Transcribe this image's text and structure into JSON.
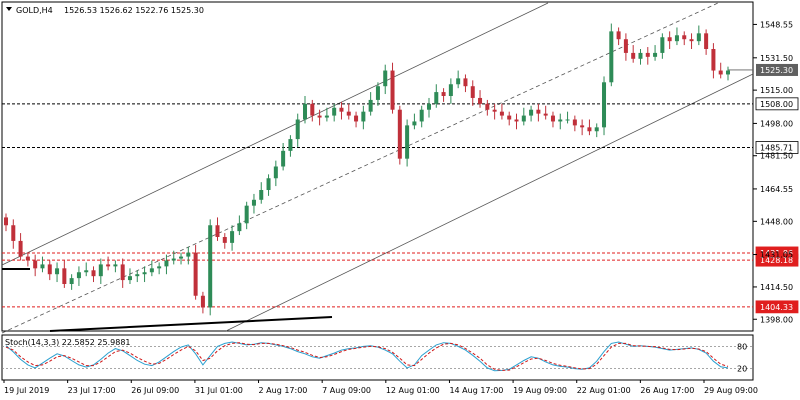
{
  "header": {
    "symbol_timeframe": "GOLD,H4",
    "ohlc": "1526.53 1526.62 1522.76 1525.30"
  },
  "colors": {
    "bull": "#2e8b57",
    "bear": "#c0303a",
    "level_black": "#000000",
    "level_red": "#e01e1e",
    "current_price_box": "#606060",
    "stoch_main": "#2aa0d0",
    "stoch_signal": "#d01818"
  },
  "chart_data": {
    "type": "candlestick",
    "title": "GOLD,H4",
    "ylim": [
      1392,
      1560
    ],
    "y_ticks": [
      1398.0,
      1414.5,
      1431.05,
      1448.0,
      1464.55,
      1481.5,
      1498.0,
      1515.0,
      1531.5,
      1548.55
    ],
    "y_tick_labels": [
      "1398.00",
      "1414.50",
      "1431.05",
      "1448.00",
      "1464.55",
      "1481.50",
      "1498.00",
      "1515.00",
      "1531.50",
      "1548.55"
    ],
    "x_tick_labels": [
      "19 Jul 2019",
      "23 Jul 17:00",
      "26 Jul 09:00",
      "31 Jul 01:00",
      "2 Aug 17:00",
      "7 Aug 09:00",
      "12 Aug 01:00",
      "14 Aug 17:00",
      "19 Aug 09:00",
      "22 Aug 01:00",
      "26 Aug 17:00",
      "29 Aug 09:00"
    ],
    "price_levels": [
      {
        "value": 1508.0,
        "label": "1508.00",
        "style": "black-dashed"
      },
      {
        "value": 1485.71,
        "label": "1485.71",
        "style": "black-dashed"
      },
      {
        "value": 1431.86,
        "label": "1431.86",
        "style": "red-dashed"
      },
      {
        "value": 1428.18,
        "label": "1428.18",
        "style": "red-dashed"
      },
      {
        "value": 1404.33,
        "label": "1404.33",
        "style": "red-dashed"
      }
    ],
    "current_price": {
      "value": 1525.3,
      "label": "1525.30"
    },
    "channel": {
      "description": "ascending parallel channel with dashed midline"
    },
    "series": [
      {
        "name": "GOLD H4 close",
        "close": [
          1446,
          1438,
          1430,
          1428,
          1424,
          1426,
          1421,
          1424,
          1416,
          1419,
          1422,
          1423,
          1420,
          1426,
          1425,
          1426,
          1418,
          1420,
          1421,
          1422,
          1424,
          1425,
          1428,
          1429,
          1430,
          1432,
          1410,
          1404,
          1446,
          1440,
          1437,
          1443,
          1447,
          1456,
          1459,
          1464,
          1470,
          1476,
          1484,
          1490,
          1500,
          1508,
          1502,
          1501,
          1502,
          1506,
          1504,
          1502,
          1499,
          1504,
          1510,
          1517,
          1525,
          1505,
          1480,
          1497,
          1499,
          1505,
          1508,
          1514,
          1512,
          1518,
          1521,
          1517,
          1511,
          1508,
          1505,
          1504,
          1502,
          1500,
          1499,
          1502,
          1505,
          1503,
          1502,
          1499,
          1500,
          1500,
          1497,
          1496,
          1494,
          1496,
          1519,
          1545,
          1541,
          1534,
          1531,
          1534,
          1532,
          1534,
          1542,
          1540,
          1543,
          1541,
          1540,
          1544,
          1536,
          1525,
          1523,
          1525
        ]
      }
    ],
    "oscillator": {
      "name": "Stoch(14,3,3)",
      "readout": "Stoch(14,3,3) 22.5852 25.9881",
      "ylim": [
        0,
        100
      ],
      "levels": [
        80,
        20
      ],
      "level_labels": [
        "80",
        "20"
      ],
      "main": [
        82,
        65,
        45,
        30,
        22,
        35,
        48,
        60,
        54,
        42,
        30,
        24,
        30,
        45,
        62,
        74,
        68,
        55,
        42,
        32,
        28,
        38,
        52,
        66,
        78,
        84,
        60,
        30,
        55,
        80,
        88,
        92,
        88,
        84,
        86,
        90,
        88,
        84,
        80,
        74,
        66,
        60,
        52,
        48,
        55,
        62,
        70,
        74,
        76,
        80,
        82,
        78,
        70,
        60,
        40,
        22,
        30,
        55,
        70,
        84,
        90,
        88,
        80,
        70,
        56,
        40,
        22,
        14,
        15,
        18,
        30,
        42,
        52,
        48,
        38,
        30,
        26,
        24,
        20,
        18,
        22,
        40,
        66,
        88,
        92,
        86,
        80,
        82,
        80,
        78,
        74,
        70,
        72,
        74,
        76,
        72,
        62,
        40,
        25,
        22
      ],
      "signal": [
        78,
        70,
        52,
        38,
        28,
        30,
        40,
        52,
        55,
        48,
        38,
        28,
        28,
        38,
        52,
        66,
        70,
        62,
        50,
        40,
        32,
        34,
        45,
        58,
        70,
        80,
        68,
        42,
        48,
        68,
        82,
        88,
        90,
        86,
        85,
        88,
        88,
        86,
        82,
        77,
        70,
        64,
        56,
        50,
        52,
        58,
        66,
        72,
        75,
        78,
        80,
        79,
        74,
        64,
        48,
        30,
        28,
        45,
        62,
        76,
        86,
        88,
        84,
        74,
        62,
        48,
        30,
        18,
        15,
        16,
        25,
        36,
        46,
        48,
        42,
        34,
        29,
        26,
        22,
        19,
        20,
        32,
        55,
        78,
        88,
        88,
        82,
        81,
        80,
        79,
        76,
        72,
        71,
        73,
        75,
        73,
        66,
        48,
        32,
        26
      ]
    }
  }
}
